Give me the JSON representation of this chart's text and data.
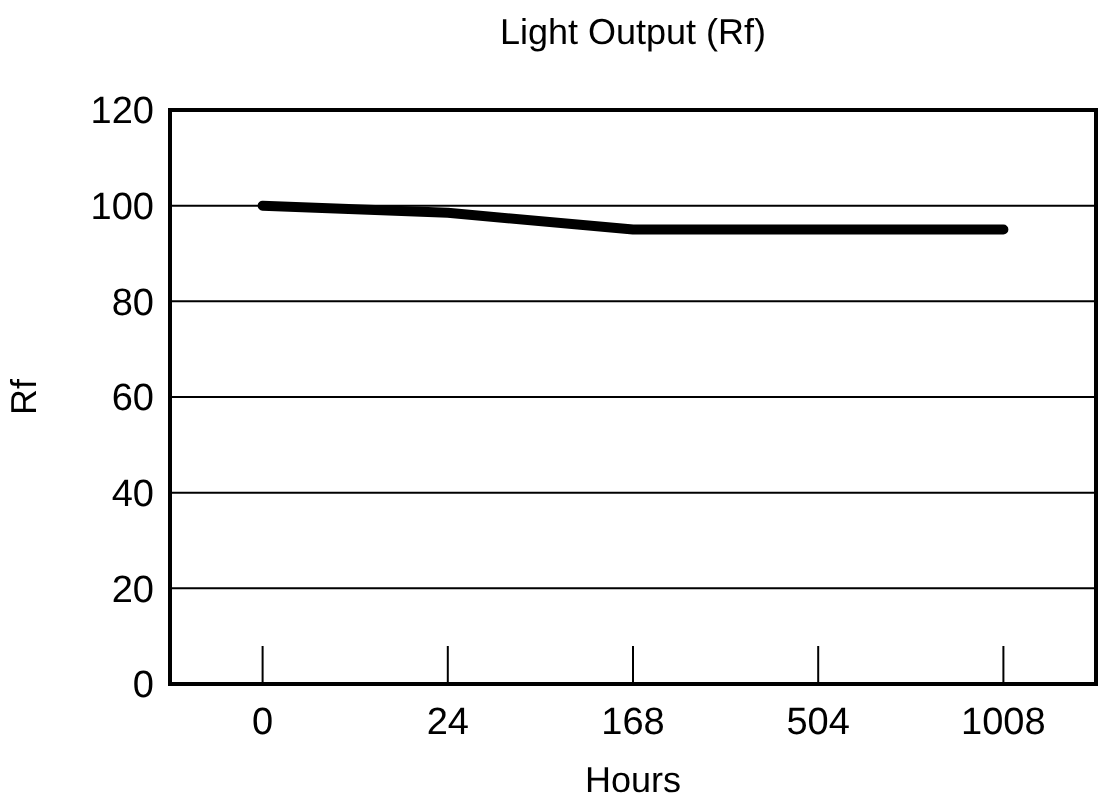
{
  "chart_data": {
    "type": "line",
    "title": "Light Output (Rf)",
    "xlabel": "Hours",
    "ylabel": "Rf",
    "categories": [
      "0",
      "24",
      "168",
      "504",
      "1008"
    ],
    "series": [
      {
        "color": "#000000",
        "values": [
          100,
          98.5,
          95,
          95,
          95
        ]
      }
    ],
    "ylim": [
      0,
      120
    ],
    "yticks": [
      0,
      20,
      40,
      60,
      80,
      100,
      120
    ],
    "grid": "y",
    "marker": "none",
    "line_style": "solid"
  }
}
